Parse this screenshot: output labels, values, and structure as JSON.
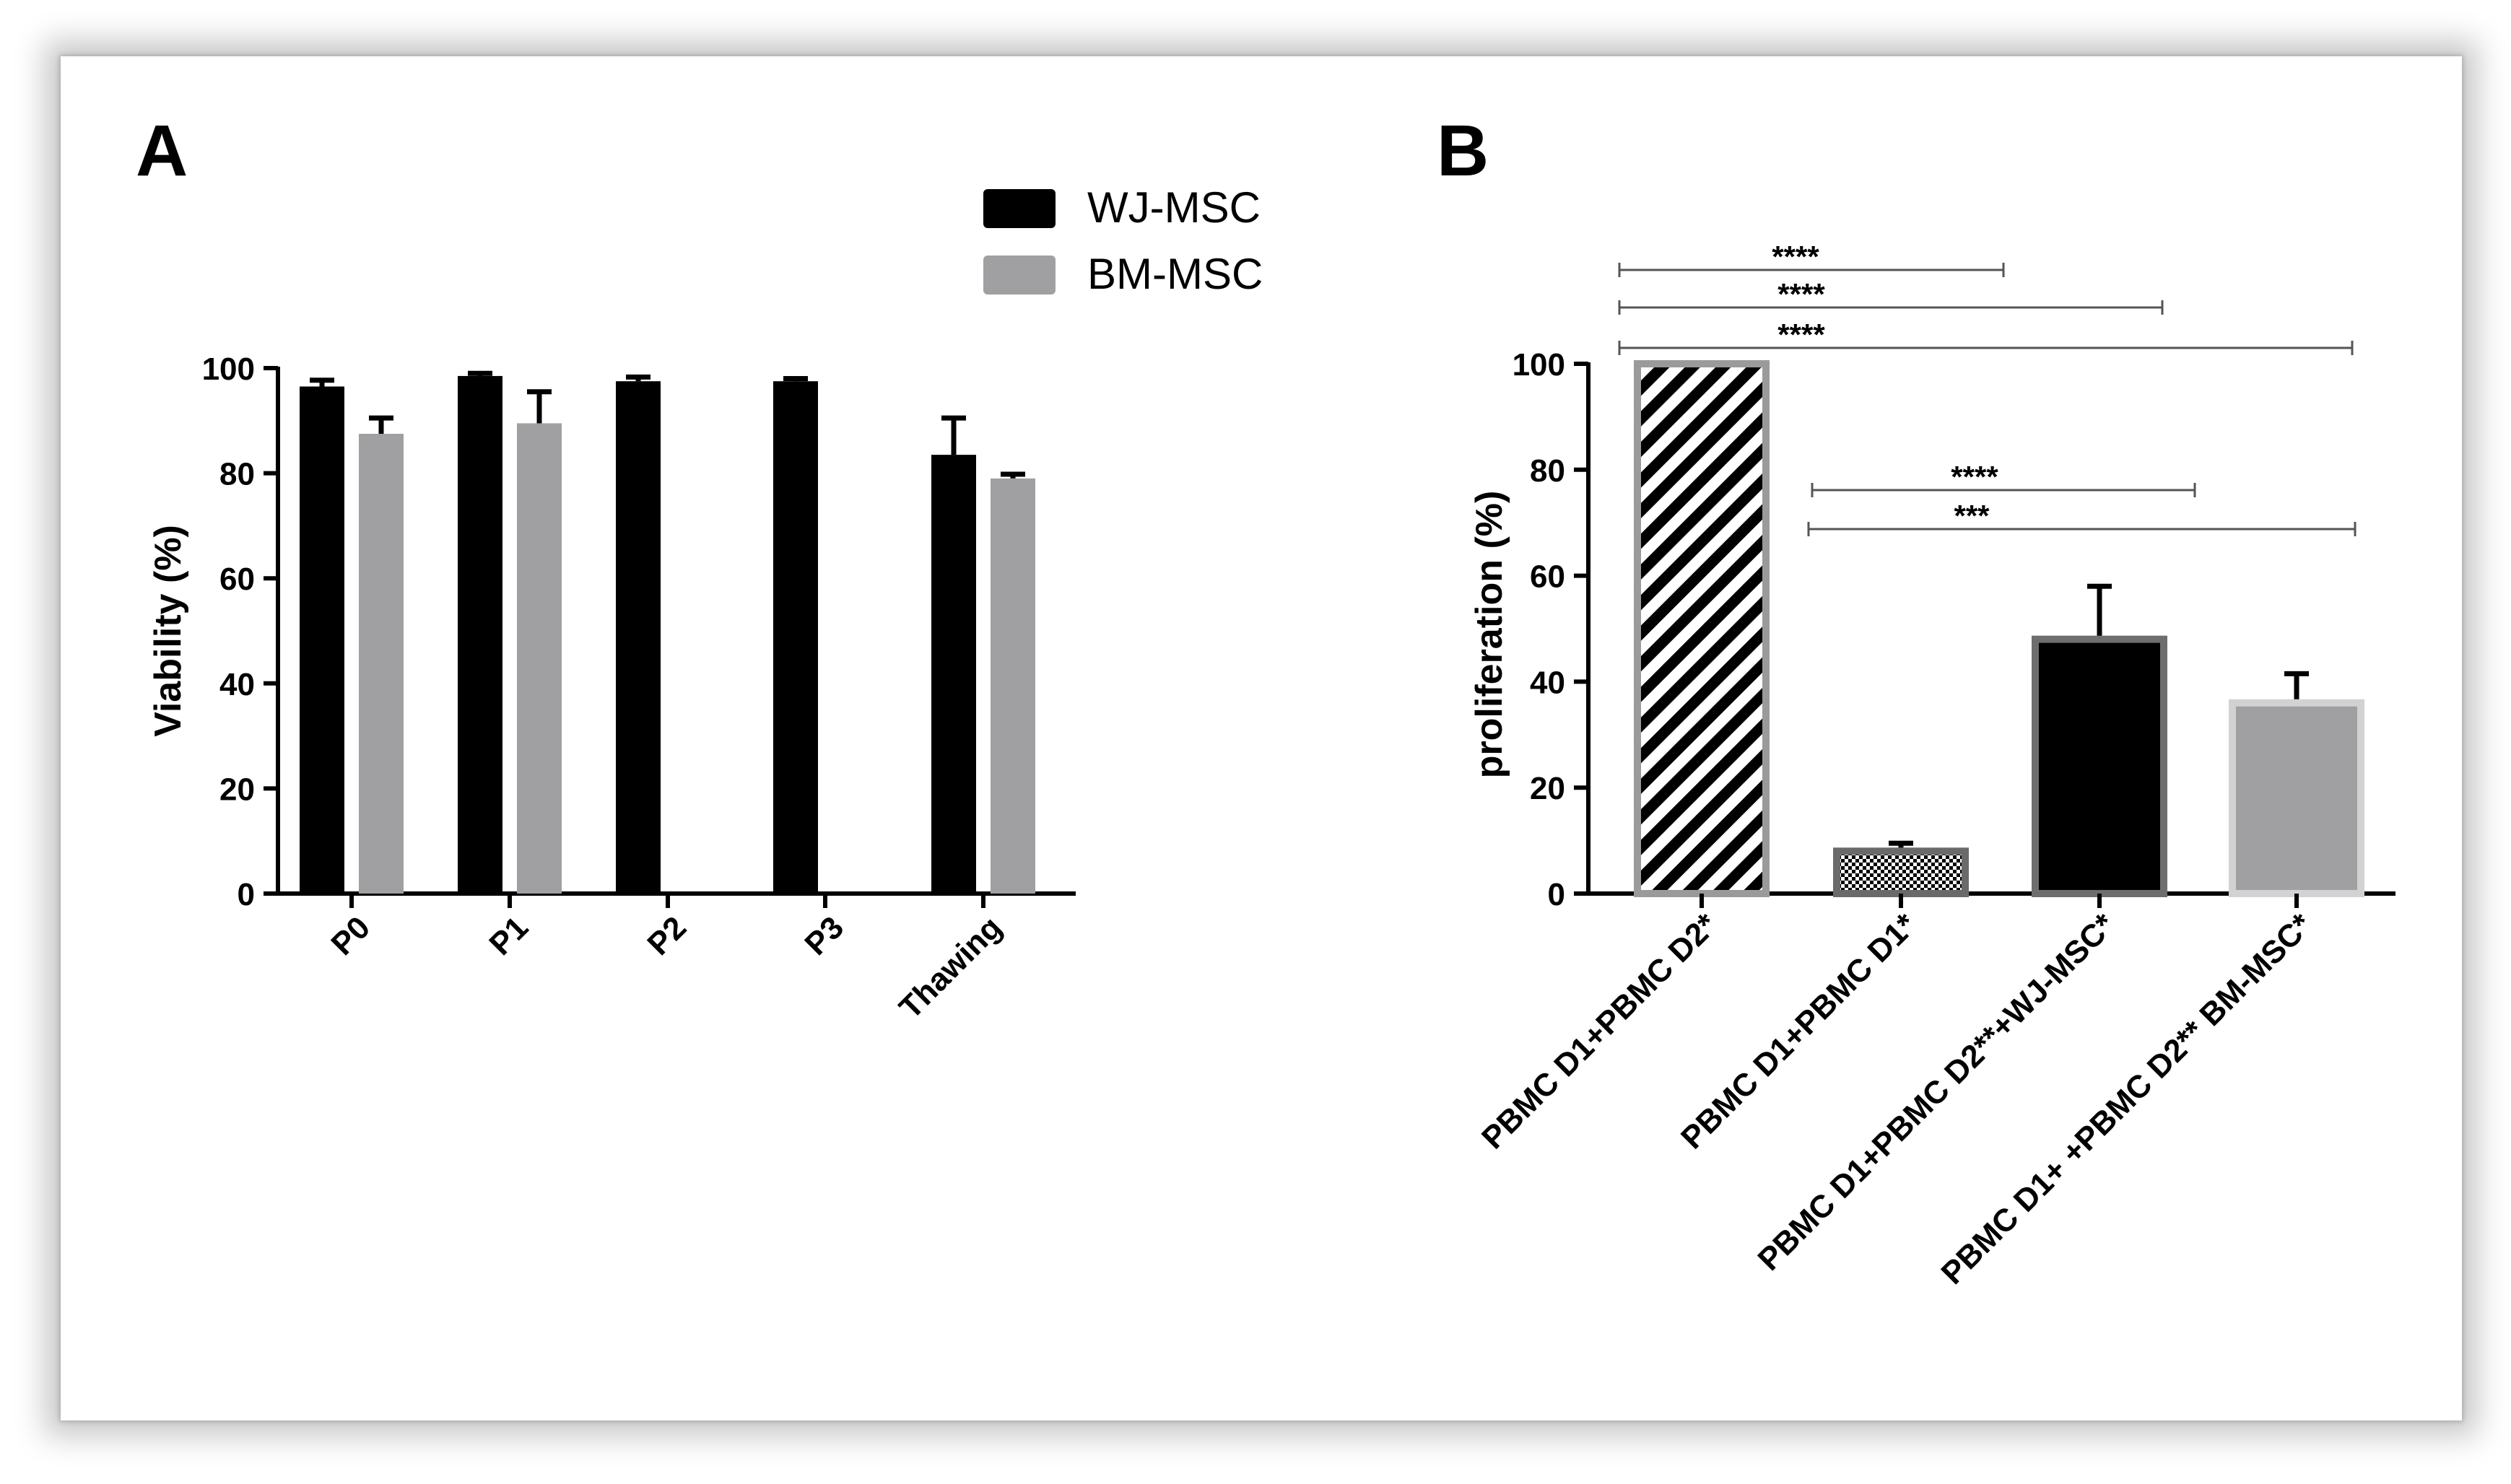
{
  "chart_data": [
    {
      "panel": "A",
      "type": "bar",
      "ylabel": "Viability  (%)",
      "ylim": [
        0,
        100
      ],
      "yticks": [
        "0",
        "20",
        "40",
        "60",
        "80",
        "100"
      ],
      "categories": [
        "P0",
        "P1",
        "P2",
        "P3",
        "Thawing"
      ],
      "legend_position": "top-right",
      "series": [
        {
          "name": "WJ-MSC",
          "color": "#000000",
          "values": [
            96.5,
            98.5,
            97.5,
            97.5,
            83.5
          ],
          "errors": [
            1.2,
            0.5,
            0.8,
            0.5,
            7
          ]
        },
        {
          "name": "BM-MSC",
          "color": "#a0a0a2",
          "values": [
            87.5,
            89.5,
            null,
            null,
            79
          ],
          "errors": [
            3,
            6,
            null,
            null,
            0.8
          ]
        }
      ]
    },
    {
      "panel": "B",
      "type": "bar",
      "ylabel": "proliferation (%)",
      "ylim": [
        0,
        100
      ],
      "yticks": [
        "0",
        "20",
        "40",
        "60",
        "80",
        "100"
      ],
      "categories": [
        "PBMC D1+PBMC D2*",
        "PBMC D1+PBMC D1*",
        "PBMC D1+PBMC D2**+WJ-MSC*",
        "PBMC D1+ +PBMC D2** BM-MSC*"
      ],
      "values": [
        100,
        8,
        48,
        36
      ],
      "errors": [
        0,
        1.5,
        10,
        5.5
      ],
      "fills": [
        "hatch-diagonal",
        "checkered",
        "#000000",
        "#a0a0a2"
      ],
      "significance": [
        {
          "from": "PBMC D1+PBMC D2*",
          "to": "PBMC D1+PBMC D1*",
          "label": "****"
        },
        {
          "from": "PBMC D1+PBMC D2*",
          "to": "PBMC D1+PBMC D2**+WJ-MSC*",
          "label": "****"
        },
        {
          "from": "PBMC D1+PBMC D2*",
          "to": "PBMC D1+ +PBMC D2** BM-MSC*",
          "label": "****"
        },
        {
          "from": "PBMC D1+PBMC D1*",
          "to": "PBMC D1+PBMC D2**+WJ-MSC*",
          "label": "****"
        },
        {
          "from": "PBMC D1+PBMC D1*",
          "to": "PBMC D1+ +PBMC D2** BM-MSC*",
          "label": "***"
        }
      ]
    }
  ]
}
